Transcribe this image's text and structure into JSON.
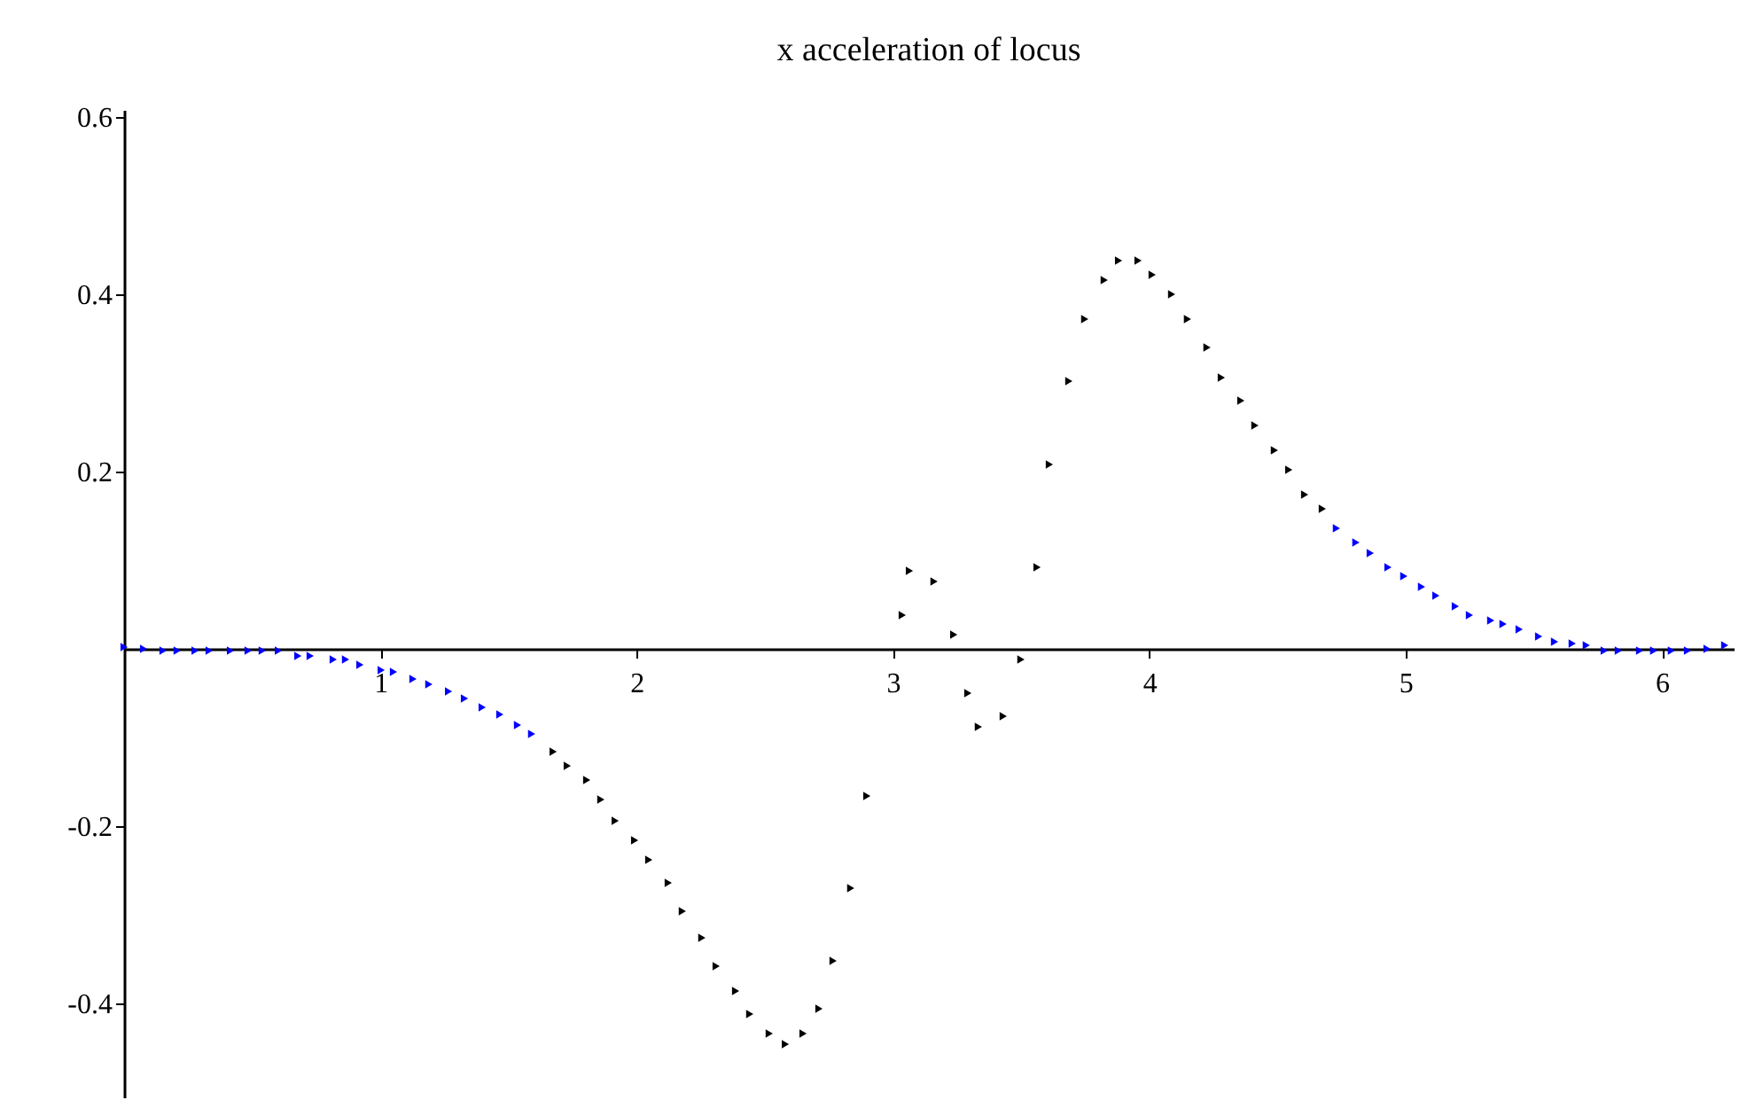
{
  "chart_data": {
    "type": "scatter",
    "title": "x acceleration of locus",
    "series": [
      {
        "color": "#0000ff",
        "x": [
          0,
          0.076,
          0.152,
          0.207,
          0.277,
          0.332,
          0.415,
          0.484,
          0.539,
          0.602,
          0.678,
          0.726,
          0.816,
          0.864,
          0.92,
          1.003,
          1.051,
          1.127,
          1.189,
          1.266,
          1.328,
          1.397,
          1.466,
          1.535,
          1.59,
          4.73,
          4.806,
          4.862,
          4.931,
          4.993,
          5.062,
          5.118,
          5.194,
          5.249,
          5.332,
          5.38,
          5.443,
          5.519,
          5.581,
          5.65,
          5.705,
          5.775,
          5.83,
          5.913,
          5.968,
          6.037,
          6.1,
          6.176,
          6.245
        ],
        "values": [
          0.002,
          0,
          -0.002,
          -0.002,
          -0.002,
          -0.002,
          -0.002,
          -0.002,
          -0.002,
          -0.002,
          -0.008,
          -0.008,
          -0.012,
          -0.012,
          -0.018,
          -0.024,
          -0.026,
          -0.034,
          -0.04,
          -0.048,
          -0.056,
          -0.066,
          -0.074,
          -0.086,
          -0.096,
          0.136,
          0.12,
          0.108,
          0.092,
          0.082,
          0.07,
          0.06,
          0.048,
          0.038,
          0.032,
          0.028,
          0.022,
          0.014,
          0.008,
          0.006,
          0.004,
          -0.002,
          -0.002,
          -0.002,
          -0.002,
          -0.002,
          -0.002,
          0,
          0.004
        ]
      },
      {
        "color": "#000000",
        "x": [
          1.674,
          1.729,
          1.805,
          1.86,
          1.916,
          1.992,
          2.047,
          2.123,
          2.178,
          2.254,
          2.31,
          2.386,
          2.441,
          2.517,
          2.58,
          2.649,
          2.711,
          2.766,
          2.835,
          2.898,
          3.036,
          3.064,
          3.16,
          3.237,
          3.292,
          3.333,
          3.43,
          3.499,
          3.562,
          3.61,
          3.686,
          3.748,
          3.824,
          3.88,
          3.956,
          4.011,
          4.087,
          4.149,
          4.225,
          4.281,
          4.357,
          4.412,
          4.488,
          4.544,
          4.606,
          4.675
        ],
        "values": [
          -0.116,
          -0.132,
          -0.148,
          -0.17,
          -0.194,
          -0.216,
          -0.238,
          -0.264,
          -0.296,
          -0.326,
          -0.358,
          -0.386,
          -0.412,
          -0.434,
          -0.446,
          -0.434,
          -0.406,
          -0.352,
          -0.27,
          -0.166,
          0.038,
          0.088,
          0.076,
          0.016,
          -0.05,
          -0.088,
          -0.076,
          -0.012,
          0.092,
          0.208,
          0.302,
          0.372,
          0.416,
          0.438,
          0.438,
          0.422,
          0.4,
          0.372,
          0.34,
          0.306,
          0.28,
          0.252,
          0.224,
          0.202,
          0.174,
          0.158
        ]
      }
    ],
    "xlim": [
      0,
      6.28
    ],
    "ylim": [
      -0.506,
      0.608
    ],
    "xticks": [
      1,
      2,
      3,
      4,
      5,
      6
    ],
    "yticks": [
      -0.4,
      -0.2,
      0.2,
      0.4,
      0.6
    ],
    "grid": false,
    "marker": "triangle"
  }
}
